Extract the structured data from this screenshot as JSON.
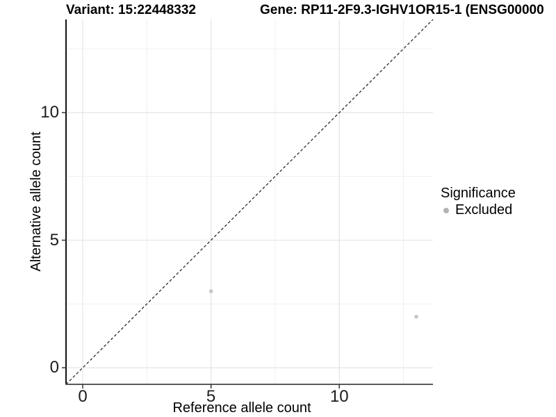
{
  "header": {
    "variant_title": "Variant: 15:22448332",
    "gene_title": "Gene: RP11-2F9.3-IGHV1OR15-1 (ENSG00000"
  },
  "axes": {
    "x_label": "Reference allele count",
    "y_label": "Alternative allele count"
  },
  "legend": {
    "title": "Significance",
    "items": [
      {
        "label": "Excluded",
        "color": "#b3b3b3"
      }
    ]
  },
  "chart_data": {
    "type": "scatter",
    "title": "Variant: 15:22448332  |  Gene: RP11-2F9.3-IGHV1OR15-1 (ENSG00000",
    "xlabel": "Reference allele count",
    "ylabel": "Alternative allele count",
    "xlim": [
      -0.65,
      13.65
    ],
    "ylim": [
      -0.65,
      13.65
    ],
    "xticks": [
      0,
      5,
      10
    ],
    "yticks": [
      0,
      5,
      10
    ],
    "grid_step": 2.5,
    "major_step": 5,
    "grid_on": true,
    "legend_position": "right",
    "series": [
      {
        "name": "Excluded",
        "points": [
          {
            "x": 5,
            "y": 3
          },
          {
            "x": 13,
            "y": 2
          }
        ]
      }
    ],
    "reference_line": {
      "type": "identity",
      "style": "dashed",
      "x1": -0.65,
      "y1": -0.65,
      "x2": 13.65,
      "y2": 13.65
    },
    "colors": {
      "point": "#c6c6c6",
      "diagonal": "#1a1a1a",
      "grid_major": "#e4e4e4",
      "grid_minor": "#efefef",
      "axis_left": "#111111",
      "axis_bottom": "#5a5a5a",
      "tick_mark": "#333333"
    }
  }
}
